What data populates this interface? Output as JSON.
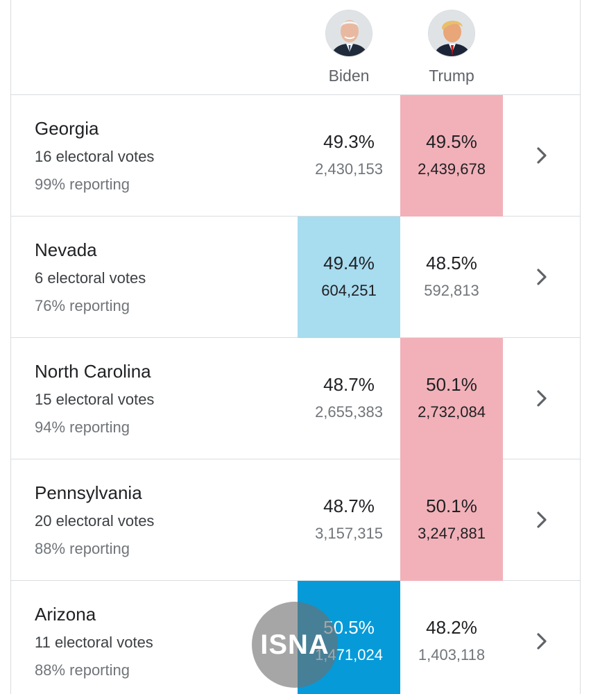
{
  "colors": {
    "republican_lead": "#f2b1b9",
    "democrat_lead": "#a8dcef",
    "democrat_win": "#069ad8",
    "border": "#dadce0"
  },
  "candidates": [
    {
      "name": "Biden",
      "avatar_icon": "biden-portrait"
    },
    {
      "name": "Trump",
      "avatar_icon": "trump-portrait"
    }
  ],
  "states": [
    {
      "name": "Georgia",
      "electoral_votes": "16 electoral votes",
      "reporting": "99% reporting",
      "biden": {
        "pct": "49.3%",
        "votes": "2,430,153"
      },
      "trump": {
        "pct": "49.5%",
        "votes": "2,439,678"
      },
      "leader": "trump",
      "icon": "chevron-right-icon"
    },
    {
      "name": "Nevada",
      "electoral_votes": "6 electoral votes",
      "reporting": "76% reporting",
      "biden": {
        "pct": "49.4%",
        "votes": "604,251"
      },
      "trump": {
        "pct": "48.5%",
        "votes": "592,813"
      },
      "leader": "biden",
      "icon": "chevron-right-icon"
    },
    {
      "name": "North Carolina",
      "electoral_votes": "15 electoral votes",
      "reporting": "94% reporting",
      "biden": {
        "pct": "48.7%",
        "votes": "2,655,383"
      },
      "trump": {
        "pct": "50.1%",
        "votes": "2,732,084"
      },
      "leader": "trump",
      "icon": "chevron-right-icon"
    },
    {
      "name": "Pennsylvania",
      "electoral_votes": "20 electoral votes",
      "reporting": "88% reporting",
      "biden": {
        "pct": "48.7%",
        "votes": "3,157,315"
      },
      "trump": {
        "pct": "50.1%",
        "votes": "3,247,881"
      },
      "leader": "trump",
      "icon": "chevron-right-icon"
    },
    {
      "name": "Arizona",
      "electoral_votes": "11 electoral votes",
      "reporting": "88% reporting",
      "biden": {
        "pct": "50.5%",
        "votes": "1,471,024"
      },
      "trump": {
        "pct": "48.2%",
        "votes": "1,403,118"
      },
      "leader": "biden-called",
      "icon": "chevron-right-icon"
    }
  ],
  "watermark": {
    "text": "ISNA"
  }
}
